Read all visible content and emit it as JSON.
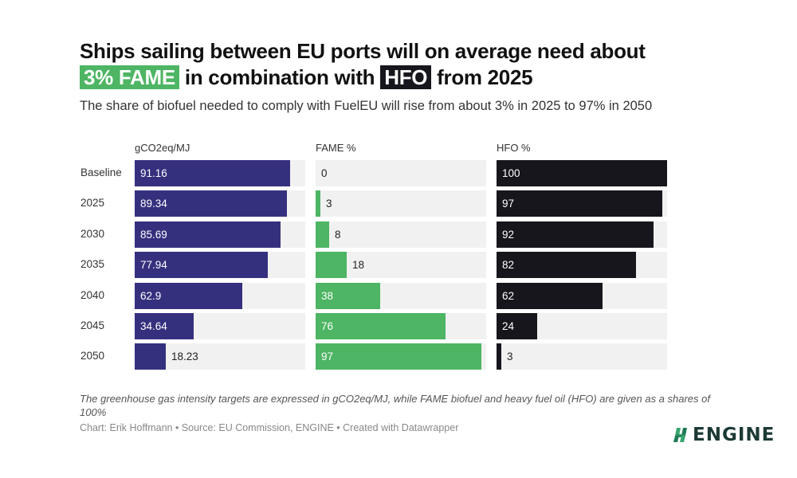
{
  "header": {
    "title_line1": "Ships sailing between EU ports will on average need about",
    "title_hl1": "3% FAME",
    "title_mid": "in combination with",
    "title_hl2": "HFO",
    "title_end": "from 2025",
    "subtitle": "The share of biofuel needed to comply with FuelEU will rise from about 3% in 2025 to 97% in 2050"
  },
  "colors": {
    "co2": "#35307e",
    "fame": "#4db563",
    "hfo": "#17161c",
    "track": "#f1f1f1"
  },
  "chart_data": {
    "type": "bar",
    "orientation": "horizontal",
    "title": "Ships sailing between EU ports will on average need about 3% FAME in combination with HFO from 2025",
    "categories": [
      "Baseline",
      "2025",
      "2030",
      "2035",
      "2040",
      "2045",
      "2050"
    ],
    "series": [
      {
        "name": "gCO2eq/MJ",
        "values": [
          91.16,
          89.34,
          85.69,
          77.94,
          62.9,
          34.64,
          18.23
        ],
        "labels": [
          "91.16",
          "89.34",
          "85.69",
          "77.94",
          "62.9",
          "34.64",
          "18.23"
        ],
        "xlim": [
          0,
          100
        ]
      },
      {
        "name": "FAME %",
        "values": [
          0,
          3,
          8,
          18,
          38,
          76,
          97
        ],
        "labels": [
          "0",
          "3",
          "8",
          "18",
          "38",
          "76",
          "97"
        ],
        "xlim": [
          0,
          100
        ]
      },
      {
        "name": "HFO %",
        "values": [
          100,
          97,
          92,
          82,
          62,
          24,
          3
        ],
        "labels": [
          "100",
          "97",
          "92",
          "82",
          "62",
          "24",
          "3"
        ],
        "xlim": [
          0,
          100
        ]
      }
    ],
    "grid": false,
    "legend": "none"
  },
  "footer": {
    "notes": "The greenhouse gas intensity targets are expressed in gCO2eq/MJ, while FAME biofuel and heavy fuel oil (HFO) are given as a shares of 100%",
    "byline": "Chart: Erik Hoffmann • Source: EU Commission, ENGINE • Created with Datawrapper",
    "logo_text": "ENGINE"
  }
}
